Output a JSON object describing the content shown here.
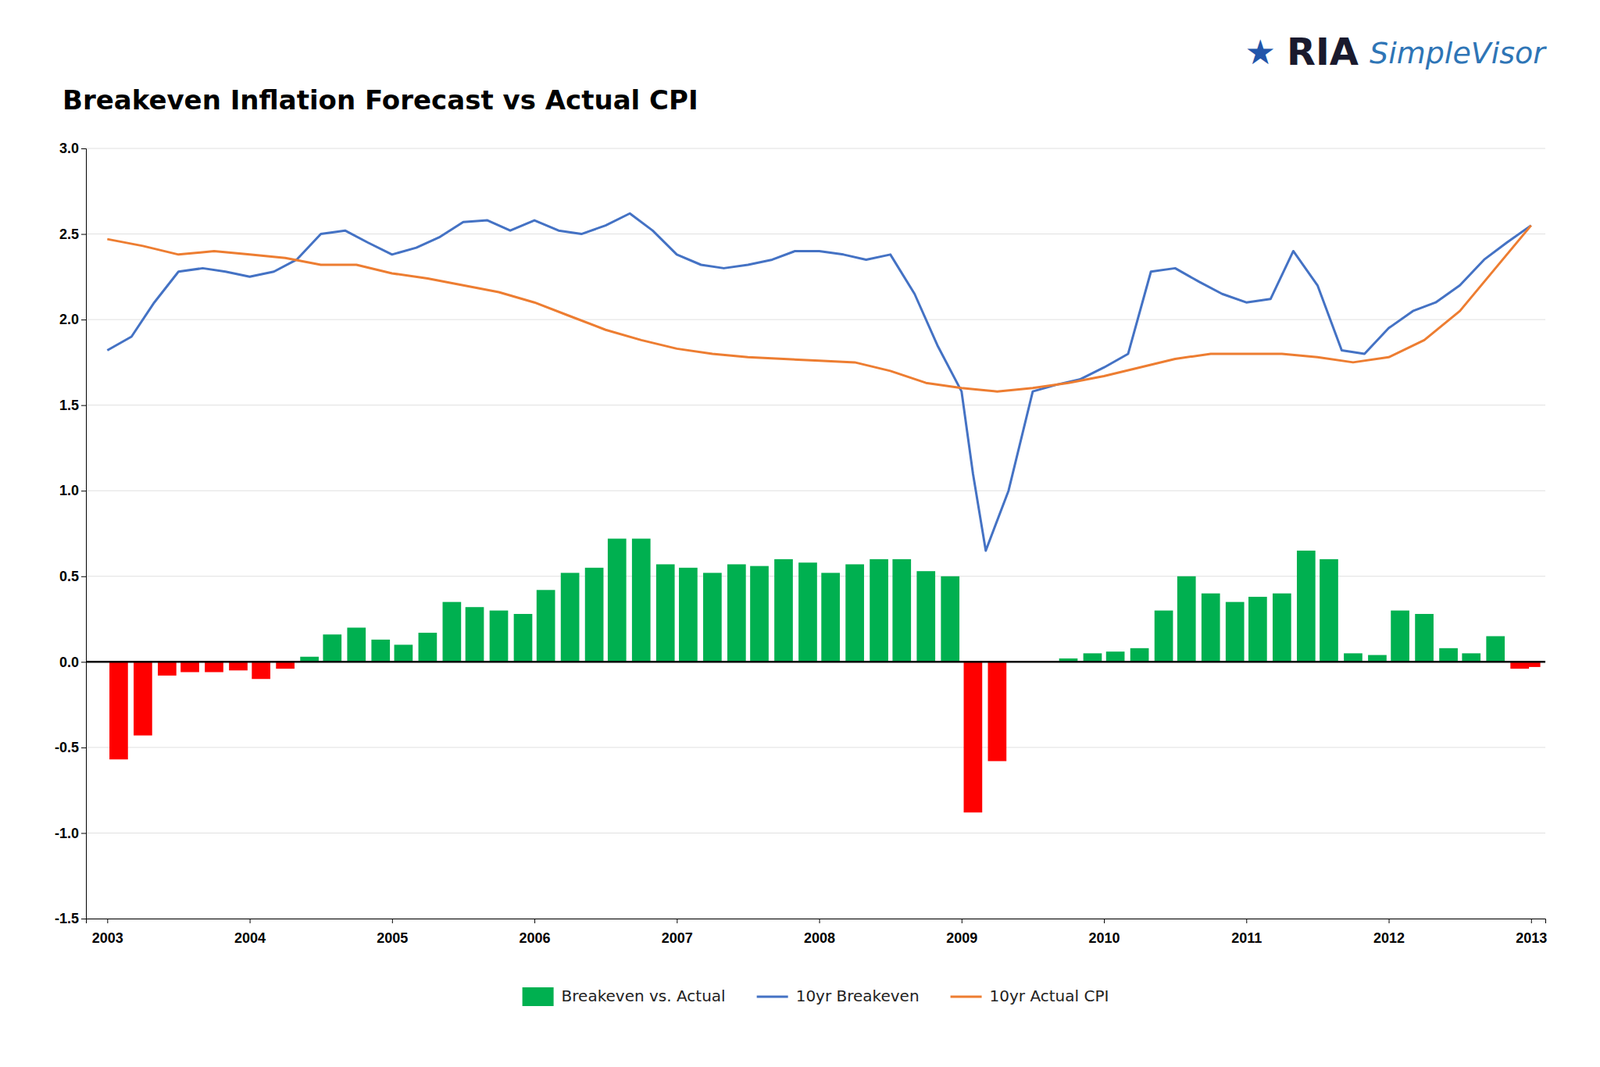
{
  "chart_data": {
    "type": "bar",
    "title": "Breakeven Inflation Forecast vs Actual CPI",
    "annotations": [
      "★",
      "RIA",
      "SimpleVisor"
    ],
    "xlim": [
      2002.85,
      2013.1
    ],
    "xticks": [
      2003,
      2004,
      2005,
      2006,
      2007,
      2008,
      2009,
      2010,
      2011,
      2012,
      2013
    ],
    "ylim": [
      -1.5,
      3.0
    ],
    "yticks": [
      -1.5,
      {
        "value": -1.0,
        "label": "-1.0"
      },
      -0.5,
      {
        "value": 0.0,
        "label": "0.0"
      },
      0.5,
      {
        "value": 1.0,
        "label": "1.0"
      },
      1.5,
      {
        "value": 2.0,
        "label": "2.0"
      },
      2.5,
      {
        "value": 3.0,
        "label": "3.0"
      }
    ],
    "grid": true,
    "legend": "bottom",
    "series": [
      {
        "name": "Breakeven vs. Actual",
        "type": "bar",
        "color": "#00B050",
        "x": [
          2003.08,
          2003.25,
          2003.42,
          2003.58,
          2003.75,
          2003.92,
          2004.08,
          2004.25,
          2004.42,
          2004.58,
          2004.75,
          2004.92,
          2005.08,
          2005.25,
          2005.42,
          2005.58,
          2005.75,
          2005.92,
          2006.08,
          2006.25,
          2006.42,
          2006.58,
          2006.75,
          2006.92,
          2007.08,
          2007.25,
          2007.42,
          2007.58,
          2007.75,
          2007.92,
          2008.08,
          2008.25,
          2008.42,
          2008.58,
          2008.75,
          2008.92,
          2009.08,
          2009.25,
          2009.75,
          2009.92,
          2010.08,
          2010.25,
          2010.42,
          2010.58,
          2010.75,
          2010.92,
          2011.08,
          2011.25,
          2011.42,
          2011.58,
          2011.75,
          2011.92,
          2012.08,
          2012.25,
          2012.42,
          2012.58,
          2012.75,
          2012.92,
          2013.0
        ],
        "values": [
          -0.57,
          -0.43,
          -0.08,
          -0.06,
          -0.06,
          -0.05,
          -0.1,
          -0.04,
          0.03,
          0.16,
          0.2,
          0.13,
          0.1,
          0.17,
          0.35,
          0.32,
          0.3,
          0.28,
          0.42,
          0.52,
          0.55,
          0.72,
          0.72,
          0.57,
          0.55,
          0.52,
          0.57,
          0.56,
          0.6,
          0.58,
          0.52,
          0.57,
          0.6,
          0.6,
          0.53,
          0.5,
          -0.88,
          -0.58,
          0.02,
          0.05,
          0.06,
          0.08,
          0.3,
          0.5,
          0.4,
          0.35,
          0.38,
          0.4,
          0.65,
          0.6,
          0.05,
          0.04,
          0.3,
          0.28,
          0.08,
          0.05,
          0.15,
          -0.04,
          -0.03
        ],
        "colors": [
          "#FF0000",
          "#FF0000",
          "#FF0000",
          "#FF0000",
          "#FF0000",
          "#FF0000",
          "#FF0000",
          "#FF0000",
          "#00B050",
          "#00B050",
          "#00B050",
          "#00B050",
          "#00B050",
          "#00B050",
          "#00B050",
          "#00B050",
          "#00B050",
          "#00B050",
          "#00B050",
          "#00B050",
          "#00B050",
          "#00B050",
          "#00B050",
          "#00B050",
          "#00B050",
          "#00B050",
          "#00B050",
          "#00B050",
          "#00B050",
          "#00B050",
          "#00B050",
          "#00B050",
          "#00B050",
          "#00B050",
          "#00B050",
          "#00B050",
          "#FF0000",
          "#FF0000",
          "#00B050",
          "#00B050",
          "#00B050",
          "#00B050",
          "#00B050",
          "#00B050",
          "#00B050",
          "#00B050",
          "#00B050",
          "#00B050",
          "#00B050",
          "#00B050",
          "#00B050",
          "#00B050",
          "#00B050",
          "#00B050",
          "#00B050",
          "#00B050",
          "#00B050",
          "#FF0000",
          "#FF0000"
        ]
      },
      {
        "name": "10yr Breakeven",
        "type": "line",
        "color": "#4472C4",
        "x": [
          2003.0,
          2003.17,
          2003.33,
          2003.5,
          2003.67,
          2003.83,
          2004.0,
          2004.17,
          2004.33,
          2004.5,
          2004.67,
          2004.83,
          2005.0,
          2005.17,
          2005.33,
          2005.5,
          2005.67,
          2005.83,
          2006.0,
          2006.17,
          2006.33,
          2006.5,
          2006.67,
          2006.83,
          2007.0,
          2007.17,
          2007.33,
          2007.5,
          2007.67,
          2007.83,
          2008.0,
          2008.17,
          2008.33,
          2008.5,
          2008.67,
          2008.83,
          2009.0,
          2009.08,
          2009.17,
          2009.33,
          2009.5,
          2009.67,
          2009.83,
          2010.0,
          2010.17,
          2010.33,
          2010.5,
          2010.67,
          2010.83,
          2011.0,
          2011.17,
          2011.33,
          2011.5,
          2011.67,
          2011.83,
          2012.0,
          2012.17,
          2012.33,
          2012.5,
          2012.67,
          2012.83,
          2013.0
        ],
        "values": [
          1.82,
          1.9,
          2.1,
          2.28,
          2.3,
          2.28,
          2.25,
          2.28,
          2.35,
          2.5,
          2.52,
          2.45,
          2.38,
          2.42,
          2.48,
          2.57,
          2.58,
          2.52,
          2.58,
          2.52,
          2.5,
          2.55,
          2.62,
          2.52,
          2.38,
          2.32,
          2.3,
          2.32,
          2.35,
          2.4,
          2.4,
          2.38,
          2.35,
          2.38,
          2.15,
          1.85,
          1.58,
          1.1,
          0.65,
          1.0,
          1.58,
          1.62,
          1.65,
          1.72,
          1.8,
          2.28,
          2.3,
          2.22,
          2.15,
          2.1,
          2.12,
          2.4,
          2.2,
          1.82,
          1.8,
          1.95,
          2.05,
          2.1,
          2.2,
          2.35,
          2.45,
          2.55
        ]
      },
      {
        "name": "10yr Actual CPI",
        "type": "line",
        "color": "#ED7D31",
        "x": [
          2003.0,
          2003.25,
          2003.5,
          2003.75,
          2004.0,
          2004.25,
          2004.5,
          2004.75,
          2005.0,
          2005.25,
          2005.5,
          2005.75,
          2006.0,
          2006.25,
          2006.5,
          2006.75,
          2007.0,
          2007.25,
          2007.5,
          2007.75,
          2008.0,
          2008.25,
          2008.5,
          2008.75,
          2009.0,
          2009.25,
          2009.5,
          2009.75,
          2010.0,
          2010.25,
          2010.5,
          2010.75,
          2011.0,
          2011.25,
          2011.5,
          2011.75,
          2012.0,
          2012.25,
          2012.5,
          2012.75,
          2013.0
        ],
        "values": [
          2.47,
          2.43,
          2.38,
          2.4,
          2.38,
          2.36,
          2.32,
          2.32,
          2.27,
          2.24,
          2.2,
          2.16,
          2.1,
          2.02,
          1.94,
          1.88,
          1.83,
          1.8,
          1.78,
          1.77,
          1.76,
          1.75,
          1.7,
          1.63,
          1.6,
          1.58,
          1.6,
          1.63,
          1.67,
          1.72,
          1.77,
          1.8,
          1.8,
          1.8,
          1.78,
          1.75,
          1.78,
          1.88,
          2.05,
          2.3,
          2.55
        ]
      }
    ]
  }
}
